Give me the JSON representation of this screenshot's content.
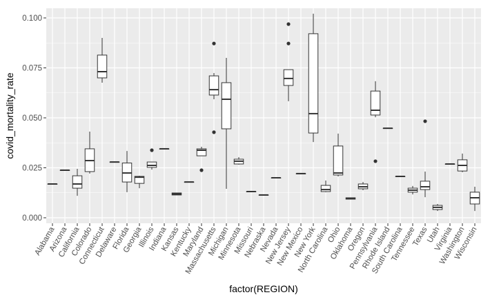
{
  "chart_data": {
    "type": "boxplot",
    "title": "",
    "xlabel": "factor(REGION)",
    "ylabel": "covid_mortality_rate",
    "ylim": [
      -0.004,
      0.105
    ],
    "yticks": [
      0.0,
      0.025,
      0.05,
      0.075,
      0.1
    ],
    "ytick_labels": [
      "0.000",
      "0.025",
      "0.050",
      "0.075",
      "0.100"
    ],
    "grid": true,
    "legend": "none",
    "colors": {
      "panel_bg": "#ebebeb",
      "grid_major": "#ffffff",
      "box_fill": "#ffffff",
      "box_stroke": "#333333",
      "outlier": "#333333",
      "tick_text": "#4d4d4d"
    },
    "categories": [
      "Alabama",
      "Arizona",
      "California",
      "Colorado",
      "Connecticut",
      "Delaware",
      "Florida",
      "Georgia",
      "Illinois",
      "Indiana",
      "Kansas",
      "Kentucky",
      "Maryland",
      "Massachusetts",
      "Michigan",
      "Minnesota",
      "Missouri",
      "Nebraska",
      "Nevada",
      "New Jersey",
      "New Mexico",
      "New York",
      "North Carolina",
      "Ohio",
      "Oklahoma",
      "Oregon",
      "Pennsylvania",
      "Rhode Island",
      "South Carolina",
      "Tennessee",
      "Texas",
      "Utah",
      "Virginia",
      "Washington",
      "Wisconsin"
    ],
    "boxes": [
      {
        "name": "Alabama",
        "min": 0.0169,
        "q1": 0.0169,
        "median": 0.0169,
        "q3": 0.0169,
        "max": 0.0169,
        "outliers": []
      },
      {
        "name": "Arizona",
        "min": 0.0238,
        "q1": 0.0238,
        "median": 0.0238,
        "q3": 0.0238,
        "max": 0.0238,
        "outliers": []
      },
      {
        "name": "California",
        "min": 0.011,
        "q1": 0.0148,
        "median": 0.0169,
        "q3": 0.021,
        "max": 0.0245,
        "outliers": []
      },
      {
        "name": "Colorado",
        "min": 0.0221,
        "q1": 0.0231,
        "median": 0.0286,
        "q3": 0.0345,
        "max": 0.0431,
        "outliers": []
      },
      {
        "name": "Connecticut",
        "min": 0.0676,
        "q1": 0.07,
        "median": 0.0731,
        "q3": 0.0814,
        "max": 0.09,
        "outliers": []
      },
      {
        "name": "Delaware",
        "min": 0.0279,
        "q1": 0.0279,
        "median": 0.0279,
        "q3": 0.0279,
        "max": 0.0279,
        "outliers": []
      },
      {
        "name": "Florida",
        "min": 0.0128,
        "q1": 0.0179,
        "median": 0.0224,
        "q3": 0.0274,
        "max": 0.0334,
        "outliers": []
      },
      {
        "name": "Georgia",
        "min": 0.0148,
        "q1": 0.0172,
        "median": 0.0203,
        "q3": 0.0207,
        "max": 0.021,
        "outliers": []
      },
      {
        "name": "Illinois",
        "min": 0.0241,
        "q1": 0.0252,
        "median": 0.0262,
        "q3": 0.0279,
        "max": 0.0279,
        "outliers": [
          0.0338
        ]
      },
      {
        "name": "Indiana",
        "min": 0.0345,
        "q1": 0.0345,
        "median": 0.0345,
        "q3": 0.0345,
        "max": 0.0345,
        "outliers": []
      },
      {
        "name": "Kansas",
        "min": 0.0114,
        "q1": 0.0114,
        "median": 0.0119,
        "q3": 0.0124,
        "max": 0.0124,
        "outliers": []
      },
      {
        "name": "Kentucky",
        "min": 0.0179,
        "q1": 0.0179,
        "median": 0.0179,
        "q3": 0.0179,
        "max": 0.0179,
        "outliers": []
      },
      {
        "name": "Maryland",
        "min": 0.031,
        "q1": 0.031,
        "median": 0.0338,
        "q3": 0.0345,
        "max": 0.0355,
        "outliers": [
          0.0238
        ]
      },
      {
        "name": "Massachusetts",
        "min": 0.0593,
        "q1": 0.0614,
        "median": 0.0641,
        "q3": 0.071,
        "max": 0.0724,
        "outliers": [
          0.0872,
          0.0428
        ]
      },
      {
        "name": "Michigan",
        "min": 0.0145,
        "q1": 0.0445,
        "median": 0.0593,
        "q3": 0.0676,
        "max": 0.08,
        "outliers": []
      },
      {
        "name": "Minnesota",
        "min": 0.0266,
        "q1": 0.0269,
        "median": 0.0283,
        "q3": 0.0293,
        "max": 0.0303,
        "outliers": []
      },
      {
        "name": "Missouri",
        "min": 0.0131,
        "q1": 0.0131,
        "median": 0.0131,
        "q3": 0.0131,
        "max": 0.0131,
        "outliers": []
      },
      {
        "name": "Nebraska",
        "min": 0.0114,
        "q1": 0.0114,
        "median": 0.0114,
        "q3": 0.0114,
        "max": 0.0114,
        "outliers": []
      },
      {
        "name": "Nevada",
        "min": 0.02,
        "q1": 0.02,
        "median": 0.02,
        "q3": 0.02,
        "max": 0.02,
        "outliers": []
      },
      {
        "name": "New Jersey",
        "min": 0.0583,
        "q1": 0.0662,
        "median": 0.0697,
        "q3": 0.0741,
        "max": 0.0741,
        "outliers": [
          0.0969,
          0.0872
        ]
      },
      {
        "name": "New Mexico",
        "min": 0.0221,
        "q1": 0.0221,
        "median": 0.0221,
        "q3": 0.0221,
        "max": 0.0221,
        "outliers": []
      },
      {
        "name": "New York",
        "min": 0.0379,
        "q1": 0.0424,
        "median": 0.0521,
        "q3": 0.0921,
        "max": 0.1021,
        "outliers": []
      },
      {
        "name": "North Carolina",
        "min": 0.0128,
        "q1": 0.0131,
        "median": 0.0141,
        "q3": 0.0162,
        "max": 0.0186,
        "outliers": []
      },
      {
        "name": "Ohio",
        "min": 0.0207,
        "q1": 0.0214,
        "median": 0.0224,
        "q3": 0.0359,
        "max": 0.0421,
        "outliers": []
      },
      {
        "name": "Oklahoma",
        "min": 0.0093,
        "q1": 0.0093,
        "median": 0.0097,
        "q3": 0.01,
        "max": 0.01,
        "outliers": []
      },
      {
        "name": "Oregon",
        "min": 0.0138,
        "q1": 0.0145,
        "median": 0.0155,
        "q3": 0.0169,
        "max": 0.0179,
        "outliers": []
      },
      {
        "name": "Pennsylvania",
        "min": 0.0503,
        "q1": 0.0514,
        "median": 0.0538,
        "q3": 0.0634,
        "max": 0.0683,
        "outliers": [
          0.0283
        ]
      },
      {
        "name": "Rhode Island",
        "min": 0.0448,
        "q1": 0.0448,
        "median": 0.0448,
        "q3": 0.0448,
        "max": 0.0448,
        "outliers": []
      },
      {
        "name": "South Carolina",
        "min": 0.0207,
        "q1": 0.0207,
        "median": 0.0207,
        "q3": 0.0207,
        "max": 0.0207,
        "outliers": []
      },
      {
        "name": "Tennessee",
        "min": 0.0117,
        "q1": 0.0128,
        "median": 0.0138,
        "q3": 0.0148,
        "max": 0.0159,
        "outliers": []
      },
      {
        "name": "Texas",
        "min": 0.0103,
        "q1": 0.0141,
        "median": 0.0155,
        "q3": 0.0183,
        "max": 0.0231,
        "outliers": [
          0.0483
        ]
      },
      {
        "name": "Utah",
        "min": 0.0034,
        "q1": 0.0041,
        "median": 0.0052,
        "q3": 0.0062,
        "max": 0.0069,
        "outliers": []
      },
      {
        "name": "Virginia",
        "min": 0.0269,
        "q1": 0.0269,
        "median": 0.0269,
        "q3": 0.0269,
        "max": 0.0269,
        "outliers": []
      },
      {
        "name": "Washington",
        "min": 0.0228,
        "q1": 0.0234,
        "median": 0.0262,
        "q3": 0.029,
        "max": 0.0321,
        "outliers": []
      },
      {
        "name": "Wisconsin",
        "min": 0.0034,
        "q1": 0.0069,
        "median": 0.01,
        "q3": 0.0128,
        "max": 0.0155,
        "outliers": []
      }
    ]
  }
}
